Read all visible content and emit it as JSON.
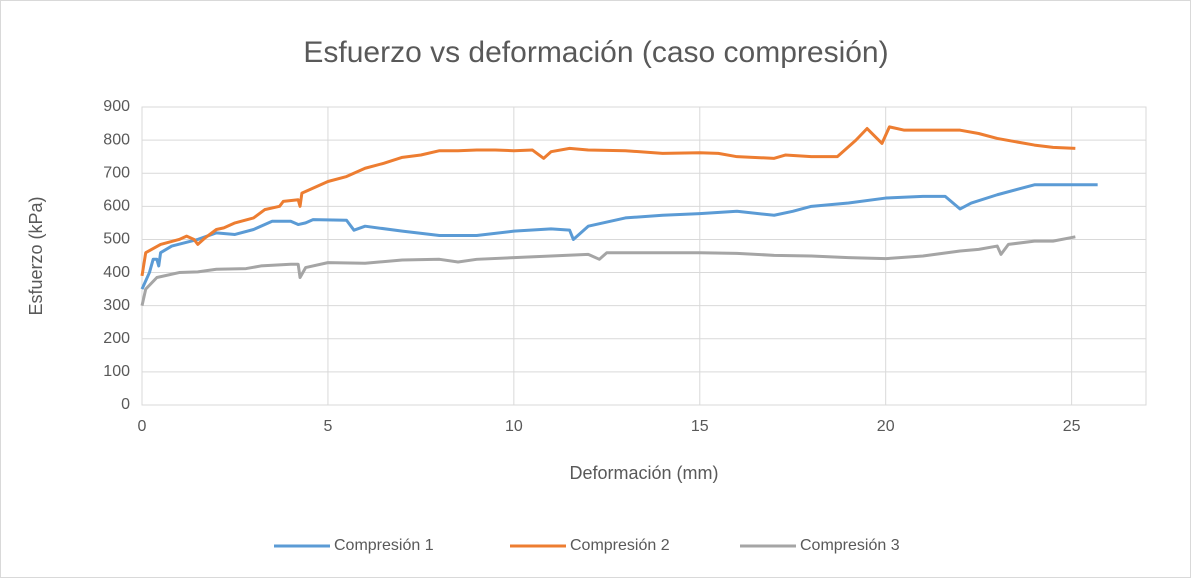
{
  "chart_data": {
    "type": "line",
    "title": "Esfuerzo vs deformación (caso compresión)",
    "x_label": "Deformación (mm)",
    "y_label": "Esfuerzo (kPa)",
    "xlim": [
      0,
      27
    ],
    "xticks": [
      0,
      5,
      10,
      15,
      20,
      25
    ],
    "ylim": [
      0,
      900
    ],
    "yticks": [
      0,
      100,
      200,
      300,
      400,
      500,
      600,
      700,
      800,
      900
    ],
    "grid": true,
    "legend": "bottom",
    "series": [
      {
        "name": "Compresión 1",
        "color": "#5b9bd5",
        "x": [
          0,
          0.2,
          0.3,
          0.4,
          0.45,
          0.5,
          0.8,
          1.5,
          2,
          2.5,
          3,
          3.5,
          4,
          4.2,
          4.4,
          4.6,
          5.5,
          5.7,
          6,
          7,
          8,
          9,
          10,
          11,
          11.5,
          11.6,
          12,
          13,
          14,
          15,
          16,
          17,
          17.5,
          18,
          19,
          20,
          21,
          21.6,
          22,
          22.3,
          23,
          24,
          25,
          25.7
        ],
        "values": [
          350,
          400,
          440,
          440,
          420,
          460,
          480,
          500,
          520,
          515,
          530,
          555,
          555,
          545,
          550,
          560,
          558,
          528,
          540,
          525,
          512,
          512,
          525,
          532,
          528,
          500,
          540,
          565,
          573,
          578,
          585,
          573,
          585,
          600,
          610,
          625,
          630,
          630,
          592,
          610,
          635,
          665,
          665,
          665
        ]
      },
      {
        "name": "Compresión 2",
        "color": "#ed7d31",
        "x": [
          0,
          0.1,
          0.5,
          1,
          1.2,
          1.4,
          1.5,
          1.7,
          2,
          2.2,
          2.5,
          3,
          3.3,
          3.7,
          3.8,
          4.2,
          4.25,
          4.3,
          5,
          5.5,
          6,
          6.5,
          7,
          7.5,
          8,
          8.5,
          9,
          9.5,
          10,
          10.5,
          10.8,
          11,
          11.5,
          12,
          13,
          14,
          15,
          15.5,
          16,
          17,
          17.3,
          18,
          18.7,
          19.2,
          19.5,
          19.9,
          20.1,
          20.5,
          21,
          22,
          22.5,
          23,
          24,
          24.5,
          25.1
        ],
        "values": [
          390,
          460,
          485,
          500,
          510,
          500,
          485,
          505,
          530,
          535,
          550,
          565,
          590,
          600,
          615,
          620,
          600,
          640,
          675,
          690,
          715,
          730,
          748,
          755,
          768,
          768,
          770,
          770,
          768,
          770,
          745,
          765,
          775,
          770,
          768,
          760,
          762,
          760,
          750,
          745,
          755,
          750,
          750,
          800,
          835,
          790,
          840,
          830,
          830,
          830,
          820,
          805,
          785,
          778,
          775
        ]
      },
      {
        "name": "Compresión 3",
        "color": "#a5a5a5",
        "x": [
          0,
          0.1,
          0.4,
          1,
          1.5,
          2,
          2.8,
          3.2,
          4,
          4.2,
          4.25,
          4.4,
          5,
          6,
          7,
          8,
          8.5,
          9,
          10,
          11,
          12,
          12.3,
          12.5,
          14,
          15,
          16,
          17,
          18,
          19,
          20,
          21,
          22,
          22.5,
          23,
          23.1,
          23.3,
          24,
          24.5,
          25.1
        ],
        "values": [
          300,
          350,
          385,
          400,
          402,
          410,
          412,
          420,
          425,
          425,
          385,
          415,
          430,
          428,
          438,
          440,
          432,
          440,
          445,
          450,
          455,
          440,
          460,
          460,
          460,
          458,
          452,
          450,
          445,
          442,
          450,
          465,
          470,
          480,
          455,
          485,
          495,
          495,
          508
        ]
      }
    ]
  }
}
